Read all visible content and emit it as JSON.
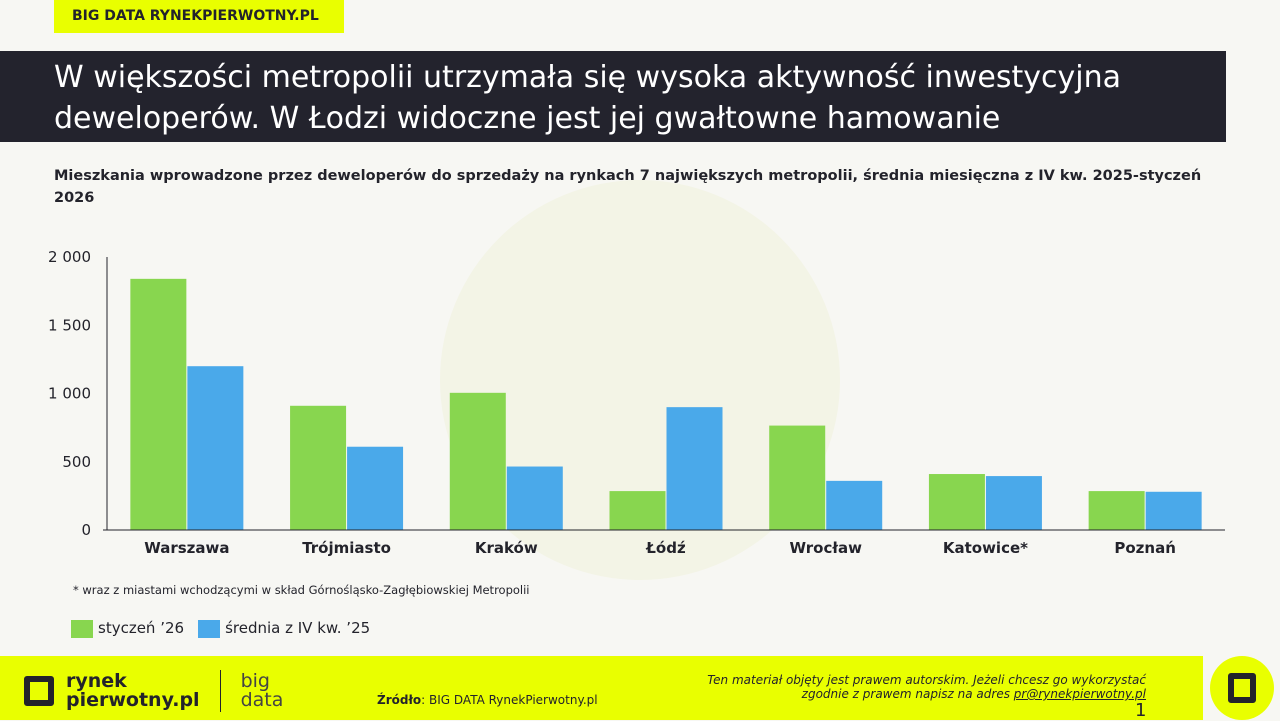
{
  "header": {
    "tag": "BIG DATA RYNEKPIERWOTNY.PL",
    "title_line1": "W większości metropolii utrzymała się wysoka aktywność inwestycyjna",
    "title_line2": "deweloperów. W Łodzi widoczne jest jej gwałtowne hamowanie"
  },
  "chart_data": {
    "type": "bar",
    "title": "Mieszkania wprowadzone przez deweloperów do sprzedaży na rynkach 7 największych metropolii, średnia miesięczna z IV kw. 2025-styczeń 2026",
    "categories": [
      "Warszawa",
      "Trójmiasto",
      "Kraków",
      "Łódź",
      "Wrocław",
      "Katowice*",
      "Poznań"
    ],
    "series": [
      {
        "name": "styczeń ’26",
        "color": "#88d64f",
        "values": [
          1840,
          910,
          1005,
          285,
          765,
          410,
          285
        ]
      },
      {
        "name": "średnia z IV kw. ’25",
        "color": "#4aa9ea",
        "values": [
          1200,
          610,
          465,
          900,
          360,
          395,
          280
        ]
      }
    ],
    "ylim": [
      0,
      2000
    ],
    "yticks": [
      0,
      500,
      1000,
      1500,
      2000
    ],
    "ytick_labels": [
      "0",
      "500",
      "1 000",
      "1 500",
      "2 000"
    ],
    "grid": false,
    "legend": "bottom-left",
    "note": "* wraz z miastami wchodzącymi w skład Górnośląsko-Zagłębiowskiej Metropolii"
  },
  "footer": {
    "logo_line1": "rynek",
    "logo_line2": "pierwotny.pl",
    "logo_big": "big",
    "logo_data": "data",
    "source_label": "Źródło",
    "source_text": ": BIG DATA RynekPierwotny.pl",
    "copy_line1": "Ten materiał objęty jest prawem autorskim. Jeżeli chcesz go wykorzystać",
    "copy_line2": "zgodnie z prawem napisz na adres ",
    "email": "pr@rynekpierwotny.pl",
    "page": "1"
  }
}
